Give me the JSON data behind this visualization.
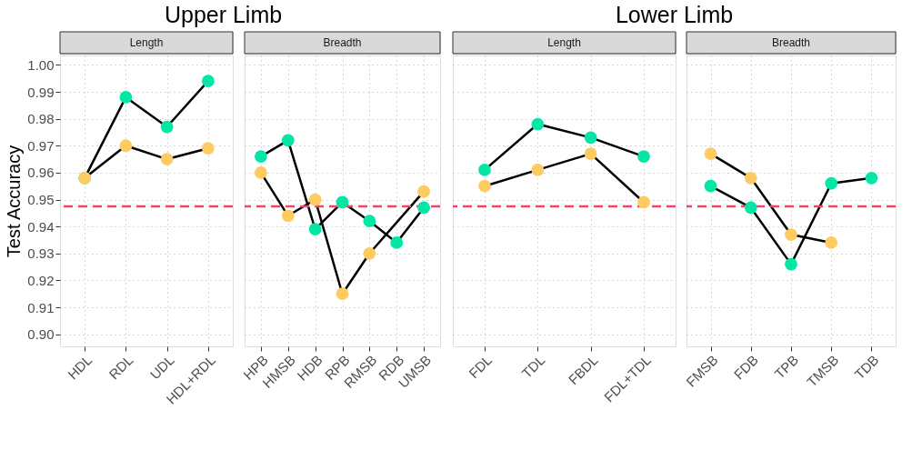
{
  "chart_data": [
    {
      "type": "line",
      "title": "Upper Limb",
      "subtitle": "Length",
      "ylabel": "Test Accuracy",
      "categories": [
        "HDL",
        "RDL",
        "UDL",
        "HDL+RDL"
      ],
      "series": [
        {
          "color": "#05e6a6",
          "values": [
            0.958,
            0.988,
            0.977,
            0.994
          ]
        },
        {
          "color": "#fecb63",
          "values": [
            0.958,
            0.97,
            0.965,
            0.969
          ]
        }
      ],
      "ylim": [
        0.8955,
        1.0035
      ],
      "yticks": [
        {
          "value": 0.9,
          "label": "0.90"
        },
        {
          "value": 0.91,
          "label": "0.91"
        },
        {
          "value": 0.92,
          "label": "0.92"
        },
        {
          "value": 0.93,
          "label": "0.93"
        },
        {
          "value": 0.94,
          "label": "0.94"
        },
        {
          "value": 0.95,
          "label": "0.95"
        },
        {
          "value": 0.96,
          "label": "0.96"
        },
        {
          "value": 0.97,
          "label": "0.97"
        },
        {
          "value": 0.98,
          "label": "0.98"
        },
        {
          "value": 0.99,
          "label": "0.99"
        },
        {
          "value": 1.0,
          "label": "1.00"
        }
      ],
      "ref_lines": [
        {
          "axis": "y",
          "value": 0.9475,
          "color": "#ee4468",
          "line_style": "dashed"
        }
      ],
      "grid": true,
      "marker": "circle",
      "line_style": "solid",
      "legend": false
    },
    {
      "type": "line",
      "subtitle": "Breadth",
      "categories": [
        "HPB",
        "HMSB",
        "HDB",
        "RPB",
        "RMSB",
        "RDB",
        "UMSB"
      ],
      "series": [
        {
          "color": "#05e6a6",
          "values": [
            0.966,
            0.972,
            0.939,
            0.949,
            0.942,
            0.934,
            0.947
          ]
        },
        {
          "color": "#fecb63",
          "values": [
            0.96,
            0.944,
            0.95,
            0.915,
            0.93,
            null,
            0.953
          ]
        }
      ],
      "ylim": [
        0.8955,
        1.0035
      ],
      "yticks": [
        0.9,
        0.91,
        0.92,
        0.93,
        0.94,
        0.95,
        0.96,
        0.97,
        0.98,
        0.99,
        1
      ],
      "ref_lines": [
        {
          "axis": "y",
          "value": 0.9475,
          "color": "#ee4468",
          "line_style": "dashed"
        }
      ],
      "grid": true,
      "marker": "circle",
      "line_style": "solid",
      "legend": false,
      "tick_labels": "x"
    },
    {
      "type": "line",
      "title": "Lower Limb",
      "subtitle": "Length",
      "categories": [
        "FDL",
        "TDL",
        "FBDL",
        "FDL+TDL"
      ],
      "series": [
        {
          "color": "#05e6a6",
          "values": [
            0.961,
            0.978,
            0.973,
            0.966
          ]
        },
        {
          "color": "#fecb63",
          "values": [
            0.955,
            0.961,
            0.967,
            0.949
          ]
        }
      ],
      "ylim": [
        0.8955,
        1.0035
      ],
      "yticks": [
        0.9,
        0.91,
        0.92,
        0.93,
        0.94,
        0.95,
        0.96,
        0.97,
        0.98,
        0.99,
        1
      ],
      "ref_lines": [
        {
          "axis": "y",
          "value": 0.9475,
          "color": "#ee4468",
          "line_style": "dashed"
        }
      ],
      "grid": true,
      "marker": "circle",
      "line_style": "solid",
      "legend": false,
      "tick_labels": "x"
    },
    {
      "type": "line",
      "subtitle": "Breadth",
      "categories": [
        "FMSB",
        "FDB",
        "TPB",
        "TMSB",
        "TDB"
      ],
      "series": [
        {
          "color": "#05e6a6",
          "values": [
            0.955,
            0.947,
            0.926,
            0.956,
            0.958
          ]
        },
        {
          "color": "#fecb63",
          "values": [
            0.967,
            0.958,
            0.937,
            0.934,
            null
          ]
        }
      ],
      "ylim": [
        0.8955,
        1.0035
      ],
      "yticks": [
        0.9,
        0.91,
        0.92,
        0.93,
        0.94,
        0.95,
        0.96,
        0.97,
        0.98,
        0.99,
        1
      ],
      "ref_lines": [
        {
          "axis": "y",
          "value": 0.9475,
          "color": "#ee4468",
          "line_style": "dashed"
        }
      ],
      "grid": true,
      "marker": "circle",
      "line_style": "solid",
      "legend": false,
      "tick_labels": "x"
    }
  ]
}
